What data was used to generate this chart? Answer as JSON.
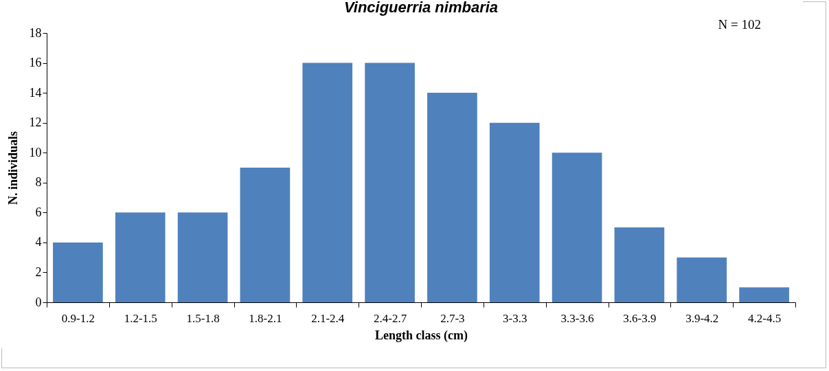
{
  "chart_data": {
    "type": "bar",
    "title": "Vinciguerria nimbaria",
    "xlabel": "Length class (cm)",
    "ylabel": "N. individuals",
    "categories": [
      "0.9-1.2",
      "1.2-1.5",
      "1.5-1.8",
      "1.8-2.1",
      "2.1-2.4",
      "2.4-2.7",
      "2.7-3",
      "3-3.3",
      "3.3-3.6",
      "3.6-3.9",
      "3.9-4.2",
      "4.2-4.5"
    ],
    "values": [
      4,
      6,
      6,
      9,
      16,
      16,
      14,
      12,
      10,
      5,
      3,
      1
    ],
    "color": "#4f81bd",
    "ylim": [
      0,
      18
    ],
    "yticks": [
      0,
      2,
      4,
      6,
      8,
      10,
      12,
      14,
      16,
      18
    ],
    "grid": false,
    "annotations": [
      "N = 102"
    ]
  }
}
